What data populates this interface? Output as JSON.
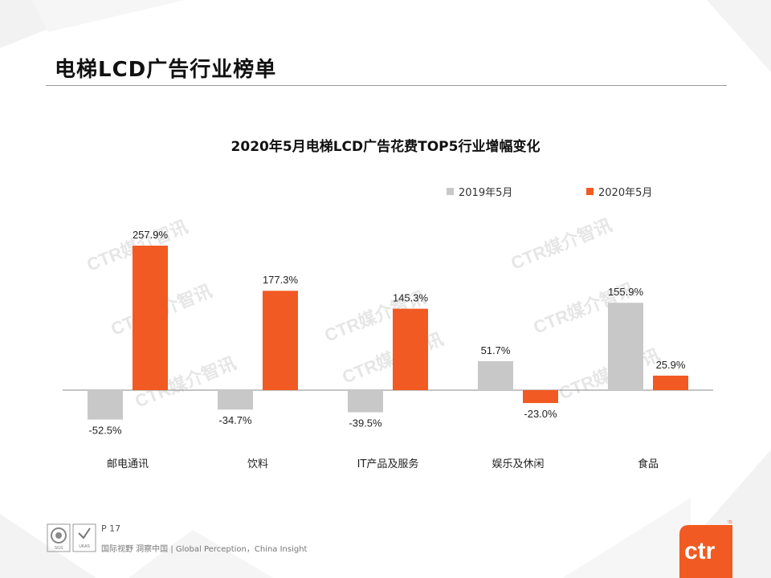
{
  "page": {
    "title": "电梯LCD广告行业榜单"
  },
  "chart_data": {
    "type": "bar",
    "title": "2020年5月电梯LCD广告花费TOP5行业增幅变化",
    "categories": [
      "邮电通讯",
      "饮料",
      "IT产品及服务",
      "娱乐及休闲",
      "食品"
    ],
    "series": [
      {
        "name": "2019年5月",
        "values": [
          -52.5,
          -34.7,
          -39.5,
          51.7,
          155.9
        ],
        "color": "#c8c8c8"
      },
      {
        "name": "2020年5月",
        "values": [
          257.9,
          177.3,
          145.3,
          -23.0,
          25.9
        ],
        "color": "#f15a22"
      }
    ],
    "data_labels": [
      [
        "-52.5%",
        "-34.7%",
        "-39.5%",
        "51.7%",
        "155.9%"
      ],
      [
        "257.9%",
        "177.3%",
        "145.3%",
        "-23.0%",
        "25.9%"
      ]
    ],
    "legend_position": "top-right",
    "grid": false
  },
  "watermark": {
    "text": "CTR媒介智讯"
  },
  "footer": {
    "page_number": "P 17",
    "slogan": "国际视野  洞察中国 |  Global Perception，China Insight",
    "badge_text": "SGS",
    "badge_text_2": "UKAS"
  },
  "brand": {
    "logo_text": "ctr",
    "registered": "®",
    "color": "#f15a22"
  }
}
